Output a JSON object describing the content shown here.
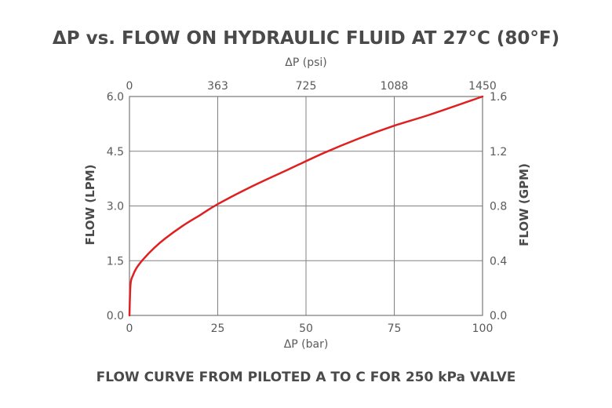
{
  "chart_data": {
    "type": "line",
    "title": "ΔP vs. FLOW ON HYDRAULIC FLUID AT 27°C (80°F)",
    "caption": "FLOW CURVE FROM PILOTED A TO C FOR 250 kPa VALVE",
    "xlabel": "ΔP (bar)",
    "x2label": "ΔP (psi)",
    "ylabel": "FLOW (LPM)",
    "y2label": "FLOW (GPM)",
    "xlim": [
      0,
      100
    ],
    "ylim": [
      0,
      6
    ],
    "x2lim": [
      0,
      1450
    ],
    "y2lim": [
      0,
      1.6
    ],
    "grid": true,
    "x_ticks": [
      "0",
      "25",
      "50",
      "75",
      "100"
    ],
    "x2_ticks": [
      "0",
      "363",
      "725",
      "1088",
      "1450"
    ],
    "y_ticks": [
      "0.0",
      "1.5",
      "3.0",
      "4.5",
      "6.0"
    ],
    "y2_ticks": [
      "0.0",
      "0.4",
      "0.8",
      "1.2",
      "1.6"
    ],
    "line_color": "#e02020",
    "series": [
      {
        "x": [
          0,
          0.3,
          1,
          2,
          4,
          7,
          10,
          15,
          20,
          25,
          35,
          45,
          55,
          65,
          75,
          85,
          100
        ],
        "y": [
          0,
          0.85,
          1.1,
          1.3,
          1.55,
          1.85,
          2.1,
          2.45,
          2.75,
          3.05,
          3.55,
          4.0,
          4.45,
          4.85,
          5.2,
          5.5,
          6.0
        ]
      }
    ]
  }
}
